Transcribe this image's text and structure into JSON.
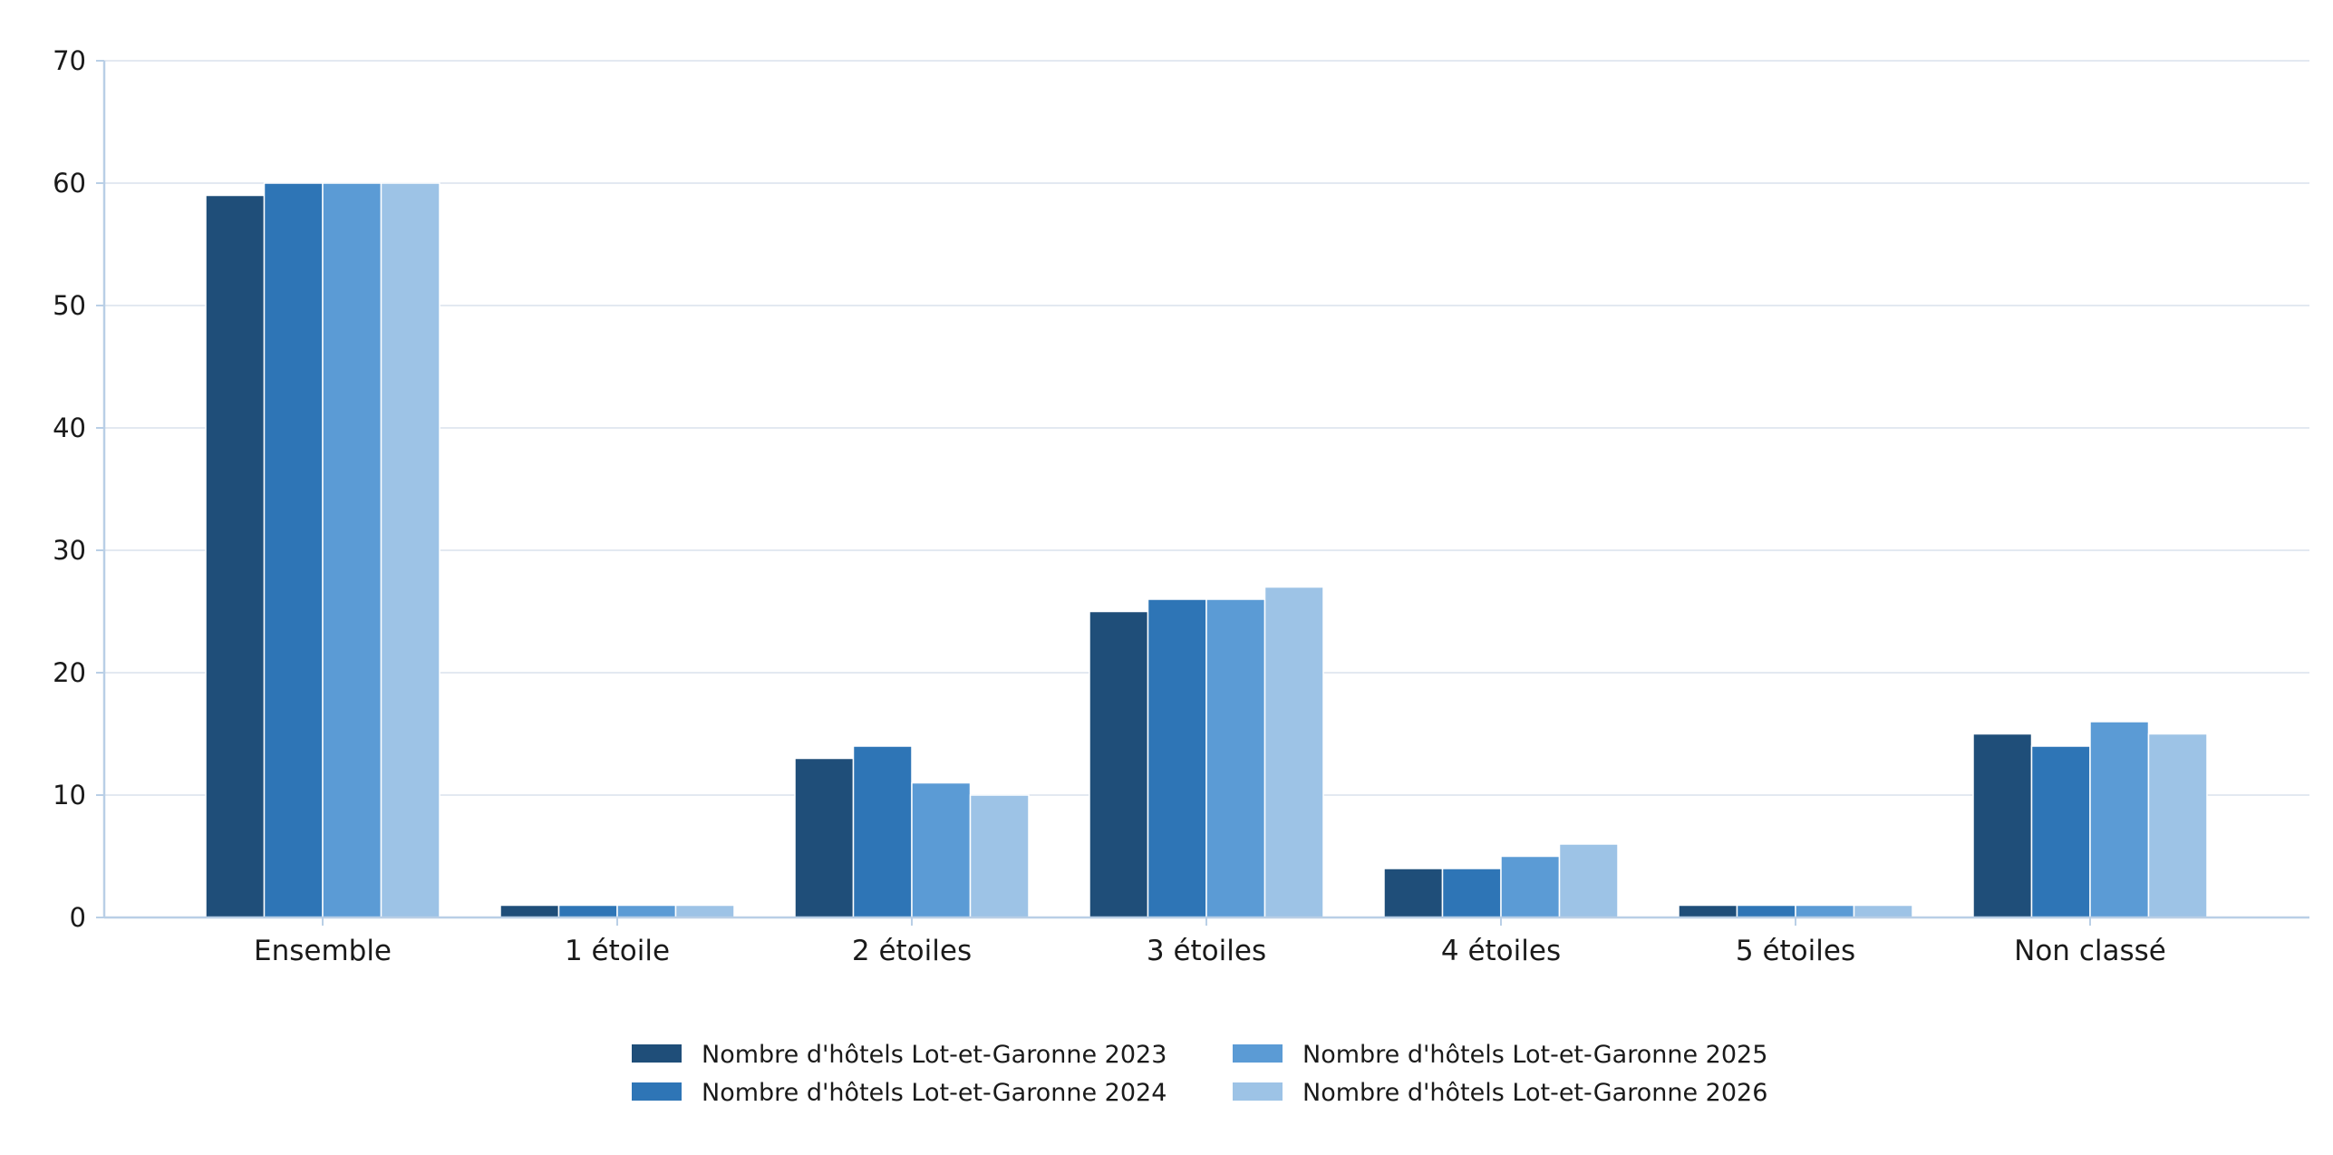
{
  "chart_data": {
    "type": "bar",
    "title": "",
    "xlabel": "",
    "ylabel": "",
    "ylim": [
      0,
      70
    ],
    "yticks": [
      0,
      10,
      20,
      30,
      40,
      50,
      60,
      70
    ],
    "grid": true,
    "legend_position": "bottom-center",
    "categories": [
      "Ensemble",
      "1 étoile",
      "2 étoiles",
      "3 étoiles",
      "4 étoiles",
      "5 étoiles",
      "Non classé"
    ],
    "series": [
      {
        "name": "Nombre d'hôtels Lot-et-Garonne 2023",
        "color": "#1f4e79",
        "values": [
          59,
          1,
          13,
          25,
          4,
          1,
          15
        ]
      },
      {
        "name": "Nombre d'hôtels Lot-et-Garonne 2024",
        "color": "#2e75b6",
        "values": [
          60,
          1,
          14,
          26,
          4,
          1,
          14
        ]
      },
      {
        "name": "Nombre d'hôtels Lot-et-Garonne 2025",
        "color": "#5b9bd5",
        "values": [
          60,
          1,
          11,
          26,
          5,
          1,
          16
        ]
      },
      {
        "name": "Nombre d'hôtels Lot-et-Garonne 2026",
        "color": "#9dc3e6",
        "values": [
          60,
          1,
          10,
          27,
          6,
          1,
          15
        ]
      }
    ]
  }
}
